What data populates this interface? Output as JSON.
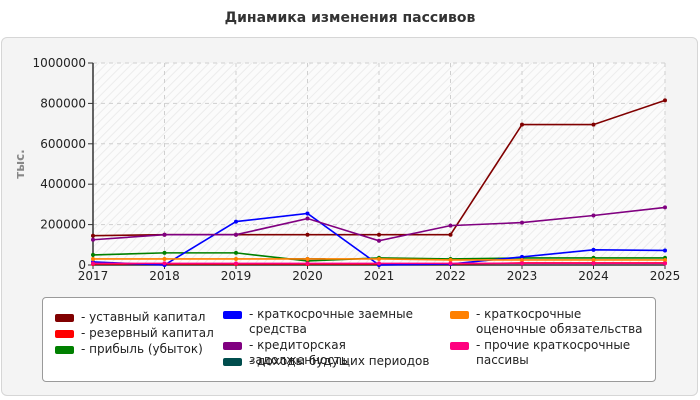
{
  "chart_data": {
    "type": "line",
    "title": "Динамика изменения пассивов",
    "ylabel": "тыс.",
    "xlabel": "",
    "x": [
      2017,
      2018,
      2019,
      2020,
      2021,
      2022,
      2023,
      2024,
      2025
    ],
    "ylim": [
      0,
      1000000
    ],
    "yticks": [
      0,
      200000,
      400000,
      600000,
      800000,
      1000000
    ],
    "grid": true,
    "legend_position": "bottom",
    "series": [
      {
        "name": "уставный капитал",
        "color": "#800000",
        "values": [
          145000,
          150000,
          150000,
          150000,
          150000,
          150000,
          695000,
          695000,
          815000
        ]
      },
      {
        "name": "резервный капитал",
        "color": "#ff0000",
        "values": [
          5000,
          5000,
          5000,
          5000,
          5000,
          5000,
          10000,
          10000,
          10000
        ]
      },
      {
        "name": "прибыль (убыток)",
        "color": "#008000",
        "values": [
          50000,
          60000,
          60000,
          20000,
          35000,
          30000,
          35000,
          35000,
          35000
        ]
      },
      {
        "name": "краткосрочные заемные средства",
        "color": "#0000ff",
        "values": [
          15000,
          0,
          215000,
          255000,
          0,
          5000,
          40000,
          75000,
          72000
        ]
      },
      {
        "name": "кредиторская задолженность",
        "color": "#800080",
        "values": [
          125000,
          150000,
          150000,
          230000,
          120000,
          195000,
          210000,
          245000,
          285000
        ]
      },
      {
        "name": "доходы будущих периодов",
        "color": "#004d4d",
        "values": [
          null,
          null,
          null,
          30000,
          null,
          null,
          null,
          null,
          null
        ]
      },
      {
        "name": "краткосрочные оценочные обязательства",
        "color": "#ff8000",
        "values": [
          30000,
          30000,
          30000,
          30000,
          30000,
          25000,
          25000,
          25000,
          25000
        ]
      },
      {
        "name": "прочие краткосрочные пассивы",
        "color": "#ff007f",
        "values": [
          8000,
          8000,
          8000,
          8000,
          8000,
          8000,
          8000,
          8000,
          8000
        ]
      }
    ]
  }
}
